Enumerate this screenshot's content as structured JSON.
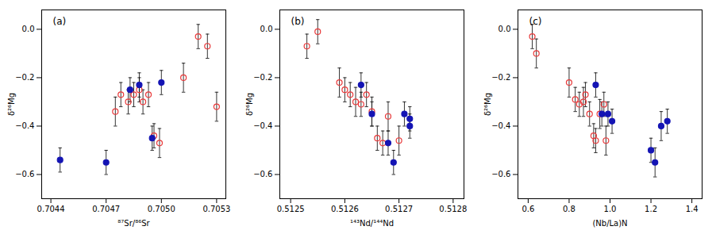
{
  "chart_data": [
    {
      "type": "scatter",
      "annotations": [
        "(a)"
      ],
      "x_label": "⁸⁷Sr/⁸⁶Sr",
      "y_label": "δ²⁶Mg",
      "xlim": [
        0.70435,
        0.70535
      ],
      "ylim": [
        -0.7,
        0.08
      ],
      "xticks": [
        0.7044,
        0.7047,
        {
          "value": 0.705,
          "label": "0.7050"
        },
        0.7053
      ],
      "yticks": [
        {
          "value": 0,
          "label": "0.0"
        },
        -0.2,
        -0.4,
        -0.6
      ],
      "grid": false,
      "series": [
        {
          "color": "#e8393a",
          "marker": "open_circle",
          "x": [
            0.70475,
            0.70478,
            0.70482,
            0.70485,
            0.70488,
            0.7049,
            0.70493,
            0.70496,
            0.70499,
            0.70512,
            0.7052,
            0.70525,
            0.7053
          ],
          "values": [
            -0.34,
            -0.27,
            -0.3,
            -0.27,
            -0.25,
            -0.3,
            -0.27,
            -0.44,
            -0.47,
            -0.2,
            -0.03,
            -0.07,
            -0.32
          ],
          "yerr": [
            0.06,
            0.05,
            0.05,
            0.05,
            0.05,
            0.05,
            0.05,
            0.05,
            0.06,
            0.06,
            0.05,
            0.05,
            0.06
          ]
        },
        {
          "color": "#1414b4",
          "marker": "circle",
          "x": [
            0.70445,
            0.7047,
            0.70483,
            0.70488,
            0.70495,
            0.705
          ],
          "values": [
            -0.54,
            -0.55,
            -0.25,
            -0.23,
            -0.45,
            -0.22
          ],
          "yerr": [
            0.05,
            0.05,
            0.05,
            0.05,
            0.05,
            0.05
          ]
        }
      ]
    },
    {
      "type": "scatter",
      "annotations": [
        "(b)"
      ],
      "x_label": "¹⁴³Nd/¹⁴⁴Nd",
      "y_label": "δ²⁶Mg",
      "xlim": [
        0.51248,
        0.51282
      ],
      "ylim": [
        -0.7,
        0.08
      ],
      "xticks": [
        0.5125,
        0.5126,
        0.5127,
        0.5128
      ],
      "yticks": [
        {
          "value": 0,
          "label": "0.0"
        },
        -0.2,
        -0.4,
        -0.6
      ],
      "grid": false,
      "series": [
        {
          "color": "#e8393a",
          "marker": "open_circle",
          "x": [
            0.51253,
            0.51255,
            0.51259,
            0.5126,
            0.51261,
            0.51262,
            0.51263,
            0.51264,
            0.51265,
            0.51266,
            0.51267,
            0.51268,
            0.5127
          ],
          "values": [
            -0.07,
            -0.01,
            -0.22,
            -0.25,
            -0.27,
            -0.3,
            -0.31,
            -0.27,
            -0.34,
            -0.45,
            -0.47,
            -0.36,
            -0.46
          ],
          "yerr": [
            0.05,
            0.05,
            0.06,
            0.05,
            0.05,
            0.06,
            0.05,
            0.05,
            0.06,
            0.05,
            0.05,
            0.06,
            0.06
          ]
        },
        {
          "color": "#1414b4",
          "marker": "circle",
          "x": [
            0.51263,
            0.51265,
            0.51268,
            0.51269,
            0.51271,
            0.51272,
            0.51272
          ],
          "values": [
            -0.23,
            -0.35,
            -0.47,
            -0.55,
            -0.35,
            -0.37,
            -0.4
          ],
          "yerr": [
            0.05,
            0.05,
            0.05,
            0.05,
            0.05,
            0.05,
            0.05
          ]
        }
      ]
    },
    {
      "type": "scatter",
      "annotations": [
        "(c)"
      ],
      "x_label": "(Nb/La)N",
      "y_label": "δ²⁶Mg",
      "xlim": [
        0.55,
        1.45
      ],
      "ylim": [
        -0.7,
        0.08
      ],
      "xticks": [
        0.6,
        0.8,
        {
          "value": 1.0,
          "label": "1.0"
        },
        1.2,
        1.4
      ],
      "yticks": [
        {
          "value": 0,
          "label": "0.0"
        },
        -0.2,
        -0.4,
        -0.6
      ],
      "grid": false,
      "series": [
        {
          "color": "#e8393a",
          "marker": "open_circle",
          "x": [
            0.62,
            0.64,
            0.8,
            0.83,
            0.85,
            0.87,
            0.88,
            0.9,
            0.92,
            0.93,
            0.95,
            0.97,
            0.98
          ],
          "values": [
            -0.03,
            -0.1,
            -0.22,
            -0.29,
            -0.31,
            -0.3,
            -0.27,
            -0.35,
            -0.44,
            -0.46,
            -0.35,
            -0.31,
            -0.46
          ],
          "yerr": [
            0.05,
            0.06,
            0.06,
            0.05,
            0.05,
            0.06,
            0.05,
            0.05,
            0.05,
            0.05,
            0.06,
            0.05,
            0.06
          ]
        },
        {
          "color": "#1414b4",
          "marker": "circle",
          "x": [
            0.93,
            0.96,
            0.99,
            1.01,
            1.2,
            1.22,
            1.25,
            1.28
          ],
          "values": [
            -0.23,
            -0.35,
            -0.35,
            -0.38,
            -0.5,
            -0.55,
            -0.4,
            -0.38
          ],
          "yerr": [
            0.05,
            0.05,
            0.05,
            0.05,
            0.05,
            0.06,
            0.06,
            0.05
          ]
        }
      ]
    }
  ]
}
